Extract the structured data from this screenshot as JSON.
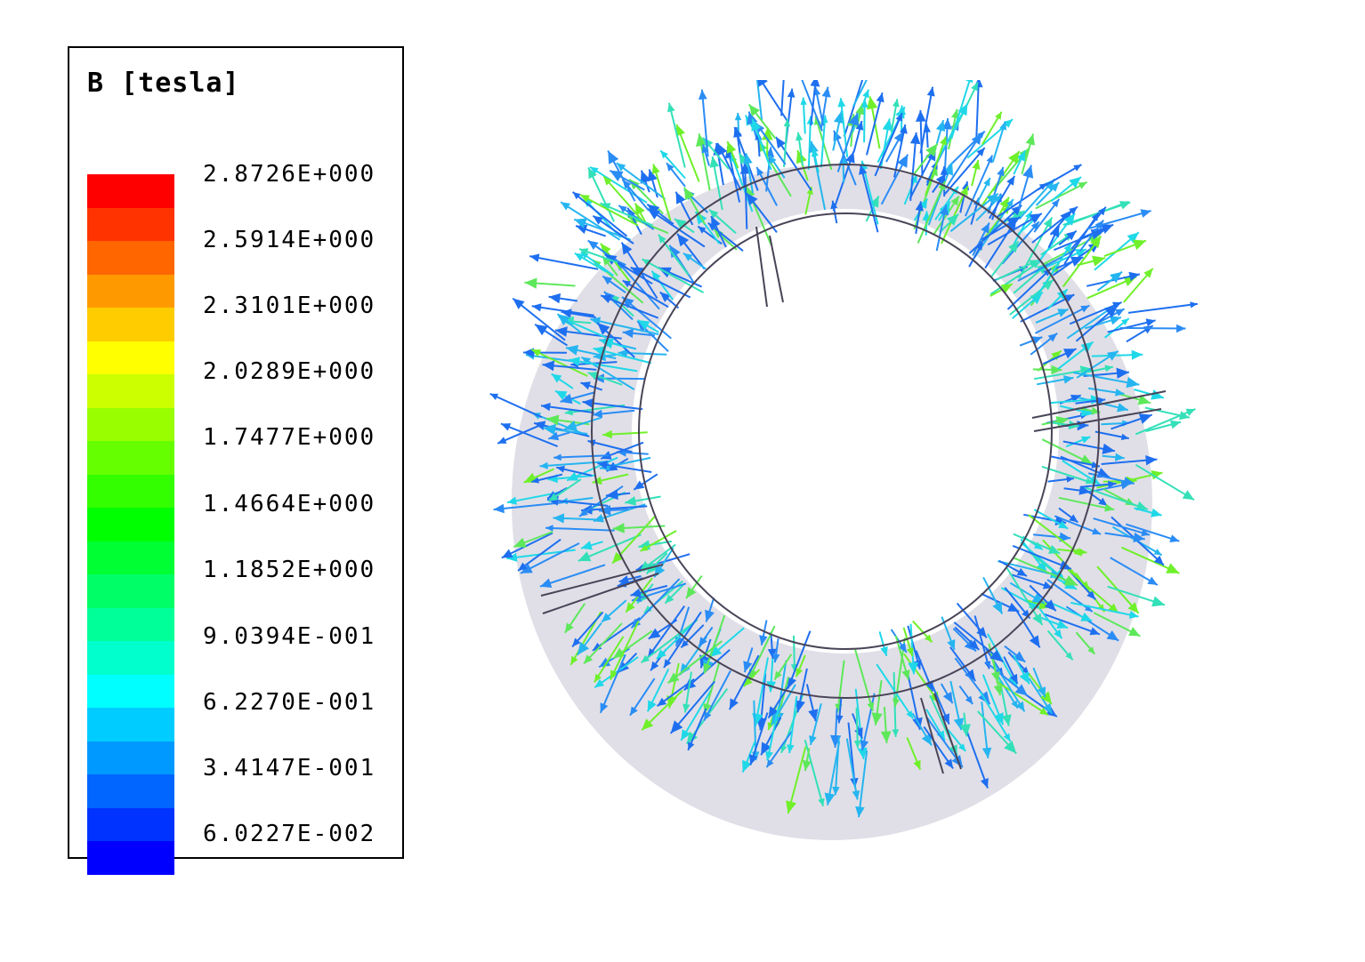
{
  "legend": {
    "title": "B [tesla]",
    "colors": [
      "#ff0000",
      "#ff3300",
      "#ff6600",
      "#ff9900",
      "#ffcc00",
      "#ffff00",
      "#ccff00",
      "#99ff00",
      "#66ff00",
      "#33ff00",
      "#00ff00",
      "#00ff33",
      "#00ff66",
      "#00ff99",
      "#00ffcc",
      "#00ffff",
      "#00ccff",
      "#0099ff",
      "#0066ff",
      "#0033ff",
      "#0000ff"
    ],
    "ticks": [
      "2.8726E+000",
      "2.5914E+000",
      "2.3101E+000",
      "2.0289E+000",
      "1.7477E+000",
      "1.4664E+000",
      "1.1852E+000",
      "9.0394E-001",
      "6.2270E-001",
      "3.4147E-001",
      "6.0227E-002"
    ]
  },
  "plot": {
    "ring_color": "#d6d4df",
    "outline_color": "#4a4458",
    "arrow_colors": [
      "#1e6ff0",
      "#2a8cf5",
      "#25b5f0",
      "#1fd8e8",
      "#33e0b8",
      "#5de85a",
      "#6ff02a"
    ]
  }
}
